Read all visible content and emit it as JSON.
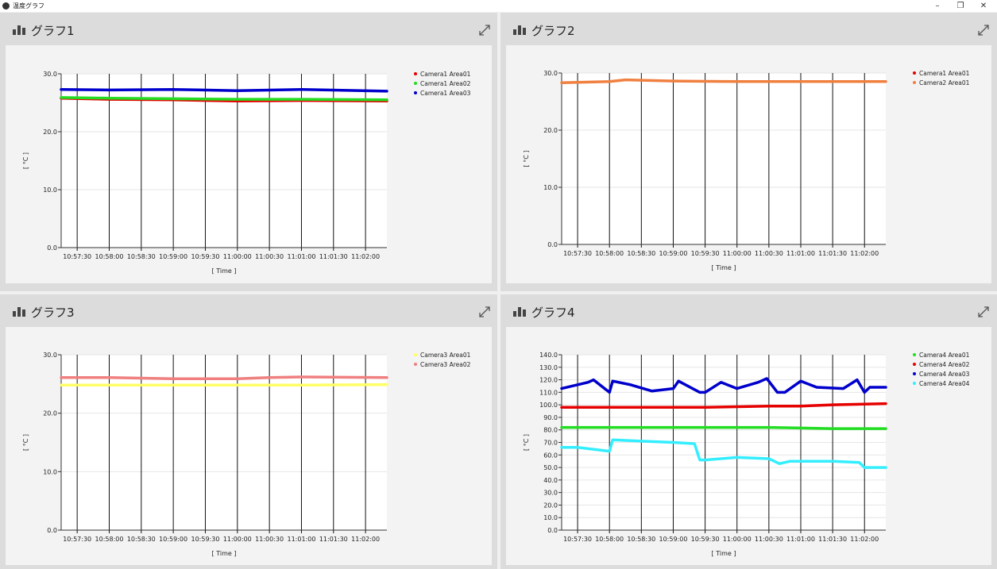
{
  "window": {
    "title": "温度グラフ",
    "minimize_label": "–",
    "restore_label": "❐",
    "close_label": "✕"
  },
  "icons": {
    "app": "app-icon",
    "chart": "bar-chart-icon",
    "expand": "expand-icon"
  },
  "panels": [
    {
      "title": "グラフ1"
    },
    {
      "title": "グラフ2"
    },
    {
      "title": "グラフ3"
    },
    {
      "title": "グラフ4"
    }
  ],
  "chart_data": [
    {
      "type": "line",
      "title": "グラフ1",
      "xlabel": "[ Time ]",
      "ylabel": "[ °C ]",
      "x_ticks": [
        "10:57:30",
        "10:58:00",
        "10:58:30",
        "10:59:00",
        "10:59:30",
        "11:00:00",
        "11:00:30",
        "11:01:00",
        "11:01:30",
        "11:02:00"
      ],
      "x_range": [
        "10:57:15",
        "11:02:20"
      ],
      "ylim": [
        0,
        30
      ],
      "y_ticks": [
        "0.0",
        "10.0",
        "20.0",
        "30.0"
      ],
      "grid": true,
      "legend": "top-right",
      "series": [
        {
          "name": "Camera1 Area01",
          "color": "#e60000",
          "x": [
            "10:57:15",
            "10:58:00",
            "10:59:00",
            "11:00:00",
            "11:01:00",
            "11:02:20"
          ],
          "values": [
            25.8,
            25.6,
            25.5,
            25.3,
            25.4,
            25.3
          ]
        },
        {
          "name": "Camera1 Area02",
          "color": "#22dd22",
          "x": [
            "10:57:15",
            "10:58:00",
            "10:59:00",
            "11:00:00",
            "11:01:00",
            "11:02:20"
          ],
          "values": [
            25.9,
            25.8,
            25.7,
            25.6,
            25.6,
            25.5
          ]
        },
        {
          "name": "Camera1 Area03",
          "color": "#0000cc",
          "x": [
            "10:57:15",
            "10:58:00",
            "10:59:00",
            "11:00:00",
            "11:01:00",
            "11:02:20"
          ],
          "values": [
            27.3,
            27.2,
            27.3,
            27.1,
            27.3,
            27.0
          ]
        }
      ]
    },
    {
      "type": "line",
      "title": "グラフ2",
      "xlabel": "[ Time ]",
      "ylabel": "[ °C ]",
      "x_ticks": [
        "10:57:30",
        "10:58:00",
        "10:58:30",
        "10:59:00",
        "10:59:30",
        "11:00:00",
        "11:00:30",
        "11:01:00",
        "11:01:30",
        "11:02:00"
      ],
      "x_range": [
        "10:57:15",
        "11:02:20"
      ],
      "ylim": [
        0,
        30
      ],
      "y_ticks": [
        "0.0",
        "10.0",
        "20.0",
        "30.0"
      ],
      "grid": true,
      "legend": "top-right",
      "series": [
        {
          "name": "Camera1 Area01",
          "color": "#e60000",
          "x": [],
          "values": []
        },
        {
          "name": "Camera2 Area01",
          "color": "#f08040",
          "x": [
            "10:57:15",
            "10:58:00",
            "10:58:15",
            "10:59:00",
            "11:00:00",
            "11:01:00",
            "11:02:20"
          ],
          "values": [
            28.3,
            28.5,
            28.8,
            28.6,
            28.5,
            28.5,
            28.5
          ]
        }
      ]
    },
    {
      "type": "line",
      "title": "グラフ3",
      "xlabel": "[ Time ]",
      "ylabel": "[ °C ]",
      "x_ticks": [
        "10:57:30",
        "10:58:00",
        "10:58:30",
        "10:59:00",
        "10:59:30",
        "11:00:00",
        "11:00:30",
        "11:01:00",
        "11:01:30",
        "11:02:00"
      ],
      "x_range": [
        "10:57:15",
        "11:02:20"
      ],
      "ylim": [
        0,
        30
      ],
      "y_ticks": [
        "0.0",
        "10.0",
        "20.0",
        "30.0"
      ],
      "grid": true,
      "legend": "top-right",
      "series": [
        {
          "name": "Camera3 Area01",
          "color": "#ffff66",
          "x": [
            "10:57:15",
            "10:59:00",
            "11:01:00",
            "11:02:20"
          ],
          "values": [
            24.8,
            24.8,
            24.8,
            24.9
          ]
        },
        {
          "name": "Camera3 Area02",
          "color": "#f08080",
          "x": [
            "10:57:15",
            "10:58:00",
            "10:59:00",
            "11:00:00",
            "11:00:30",
            "11:01:00",
            "11:02:20"
          ],
          "values": [
            26.1,
            26.1,
            25.9,
            25.9,
            26.1,
            26.2,
            26.1
          ]
        }
      ]
    },
    {
      "type": "line",
      "title": "グラフ4",
      "xlabel": "[ Time ]",
      "ylabel": "[ °C ]",
      "x_ticks": [
        "10:57:30",
        "10:58:00",
        "10:58:30",
        "10:59:00",
        "10:59:30",
        "11:00:00",
        "11:00:30",
        "11:01:00",
        "11:01:30",
        "11:02:00"
      ],
      "x_range": [
        "10:57:15",
        "11:02:20"
      ],
      "ylim": [
        0,
        140
      ],
      "y_ticks": [
        "0.0",
        "10.0",
        "20.0",
        "30.0",
        "40.0",
        "50.0",
        "60.0",
        "70.0",
        "80.0",
        "90.0",
        "100.0",
        "110.0",
        "120.0",
        "130.0",
        "140.0"
      ],
      "grid": true,
      "legend": "top-right",
      "series": [
        {
          "name": "Camera4 Area01",
          "color": "#22dd22",
          "x": [
            "10:57:15",
            "10:58:30",
            "10:59:30",
            "11:00:30",
            "11:01:30",
            "11:02:20"
          ],
          "values": [
            82,
            82,
            82,
            82,
            81,
            81
          ]
        },
        {
          "name": "Camera4 Area02",
          "color": "#e60000",
          "x": [
            "10:57:15",
            "10:58:30",
            "10:59:30",
            "11:00:30",
            "11:01:00",
            "11:01:30",
            "11:02:20"
          ],
          "values": [
            98,
            98,
            98,
            99,
            99,
            100,
            101
          ]
        },
        {
          "name": "Camera4 Area03",
          "color": "#0000cc",
          "x": [
            "10:57:15",
            "10:57:40",
            "10:57:45",
            "10:58:00",
            "10:58:03",
            "10:58:20",
            "10:58:40",
            "10:59:00",
            "10:59:05",
            "10:59:25",
            "10:59:30",
            "10:59:45",
            "11:00:00",
            "11:00:20",
            "11:00:28",
            "11:00:38",
            "11:00:45",
            "11:01:00",
            "11:01:15",
            "11:01:40",
            "11:01:53",
            "11:02:00",
            "11:02:05",
            "11:02:20"
          ],
          "values": [
            113,
            118,
            120,
            110,
            119,
            116,
            111,
            113,
            119,
            110,
            110,
            118,
            113,
            118,
            121,
            110,
            110,
            119,
            114,
            113,
            120,
            110,
            114,
            114
          ]
        },
        {
          "name": "Camera4 Area04",
          "color": "#33eeff",
          "x": [
            "10:57:15",
            "10:57:30",
            "10:58:00",
            "10:58:03",
            "10:58:30",
            "10:59:00",
            "10:59:20",
            "10:59:25",
            "10:59:30",
            "11:00:00",
            "11:00:30",
            "11:00:40",
            "11:00:50",
            "11:01:00",
            "11:01:30",
            "11:01:55",
            "11:02:00",
            "11:02:20"
          ],
          "values": [
            66,
            66,
            63,
            72,
            71,
            70,
            69,
            56,
            56,
            58,
            57,
            53,
            55,
            55,
            55,
            54,
            50,
            50
          ]
        }
      ]
    }
  ]
}
